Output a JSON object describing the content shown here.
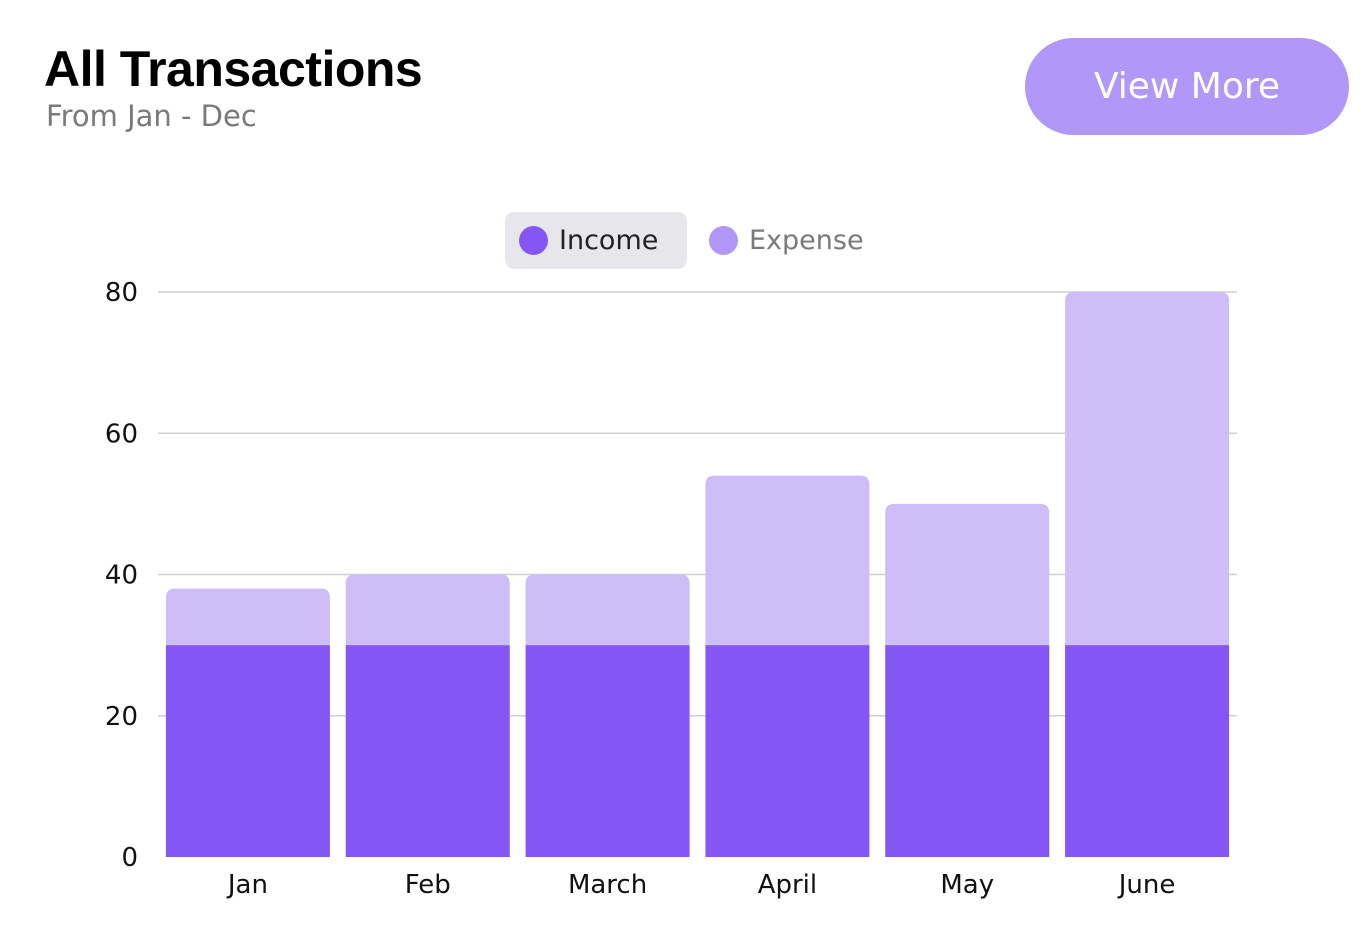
{
  "header": {
    "title": "All Transactions",
    "subtitle": "From Jan - Dec",
    "view_more_label": "View More"
  },
  "colors": {
    "income": "#8457f5",
    "expense": "#cebdf7",
    "button": "#b197f7",
    "grid": "#cfcfd4"
  },
  "chart_data": {
    "type": "bar",
    "stacked": true,
    "categories": [
      "Jan",
      "Feb",
      "March",
      "April",
      "May",
      "June"
    ],
    "series": [
      {
        "name": "Income",
        "values": [
          30,
          30,
          30,
          30,
          30,
          30
        ]
      },
      {
        "name": "Expense",
        "values": [
          8,
          10,
          10,
          24,
          20,
          50
        ]
      }
    ],
    "yticks": [
      "0",
      "20",
      "40",
      "60",
      "80"
    ],
    "ylim": [
      0,
      80
    ],
    "grid": true,
    "legend": "top-center",
    "legend_active": "Income"
  }
}
